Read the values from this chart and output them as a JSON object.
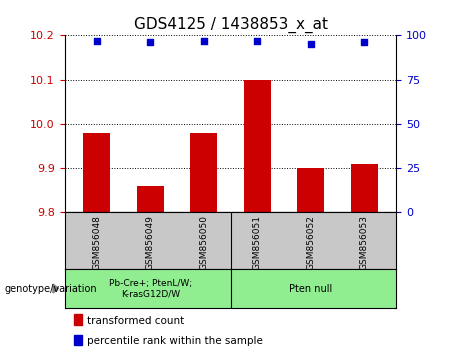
{
  "title": "GDS4125 / 1438853_x_at",
  "samples": [
    "GSM856048",
    "GSM856049",
    "GSM856050",
    "GSM856051",
    "GSM856052",
    "GSM856053"
  ],
  "bar_values": [
    9.98,
    9.86,
    9.98,
    10.1,
    9.9,
    9.91
  ],
  "percentile_values": [
    97,
    96,
    97,
    97,
    95,
    96
  ],
  "ylim_left": [
    9.8,
    10.2
  ],
  "ylim_right": [
    0,
    100
  ],
  "yticks_left": [
    9.8,
    9.9,
    10.0,
    10.1,
    10.2
  ],
  "yticks_right": [
    0,
    25,
    50,
    75,
    100
  ],
  "bar_color": "#cc0000",
  "dot_color": "#0000cc",
  "groups": [
    {
      "label": "Pb-Cre+; PtenL/W;\nK-rasG12D/W",
      "color": "#90ee90"
    },
    {
      "label": "Pten null",
      "color": "#90ee90"
    }
  ],
  "group_label": "genotype/variation",
  "legend_bar_label": "transformed count",
  "legend_dot_label": "percentile rank within the sample",
  "bg_color": "#c8c8c8",
  "plot_bg": "#ffffff",
  "tick_label_color_left": "#cc0000",
  "tick_label_color_right": "#0000cc",
  "grid_color": "#000000",
  "title_fontsize": 11,
  "axis_fontsize": 8,
  "bar_width": 0.5
}
